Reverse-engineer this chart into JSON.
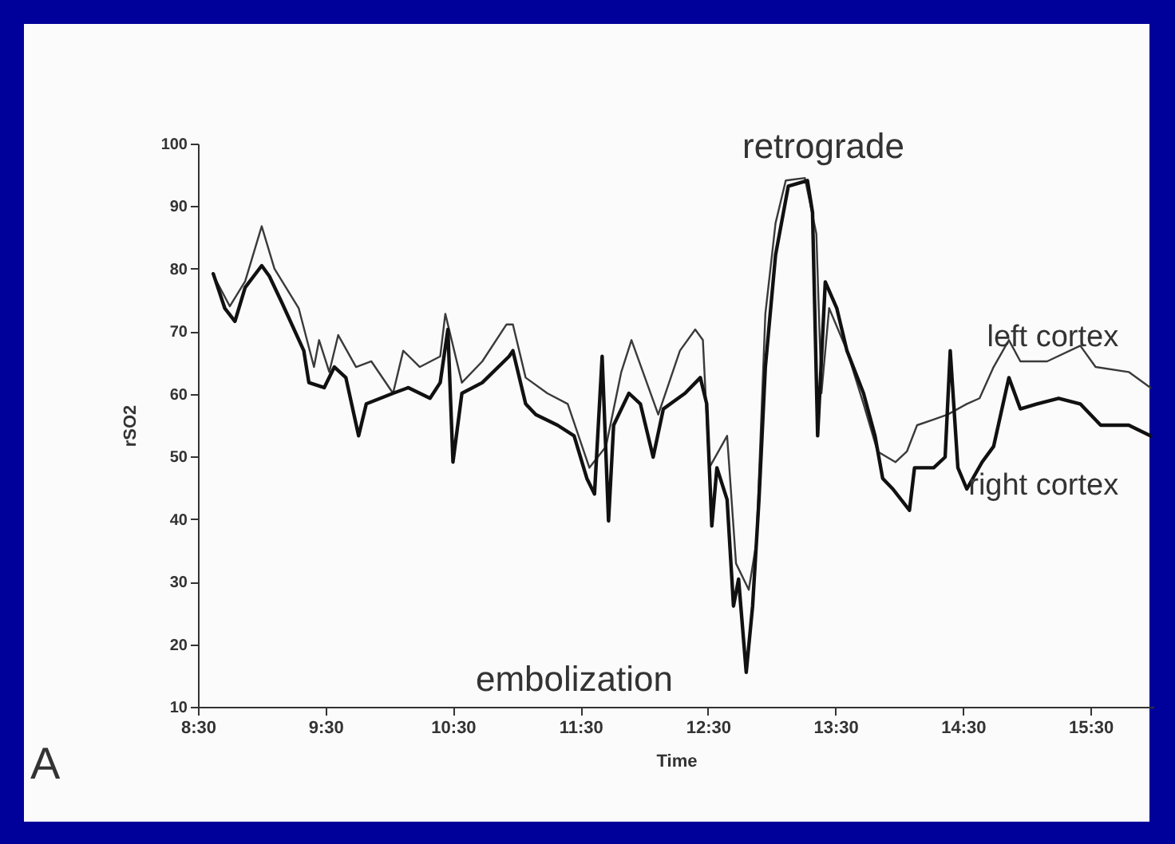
{
  "chart_data": {
    "type": "line",
    "xlabel": "Time",
    "ylabel": "rSO2",
    "xlim": [
      8.5,
      16
    ],
    "xticks": [
      {
        "value": 8.5,
        "label": "8:30"
      },
      {
        "value": 9.5,
        "label": "9:30"
      },
      {
        "value": 10.5,
        "label": "10:30"
      },
      {
        "value": 11.5,
        "label": "11:30"
      },
      {
        "value": 12.5,
        "label": "12:30"
      },
      {
        "value": 13.5,
        "label": "13:30"
      },
      {
        "value": 14.5,
        "label": "14:30"
      },
      {
        "value": 15.5,
        "label": "15:30"
      }
    ],
    "ylim": [
      10,
      100
    ],
    "yticks": [
      10,
      20,
      30,
      40,
      50,
      60,
      70,
      80,
      90,
      100
    ],
    "grid": false,
    "series": [
      {
        "name": "left cortex",
        "color": "#3a3a3a",
        "x": [
          8.62,
          8.75,
          8.87,
          9.0,
          9.1,
          9.29,
          9.41,
          9.45,
          9.53,
          9.6,
          9.74,
          9.86,
          10.03,
          10.11,
          10.24,
          10.4,
          10.44,
          10.57,
          10.73,
          10.92,
          10.97,
          11.07,
          11.24,
          11.4,
          11.57,
          11.7,
          11.82,
          11.9,
          11.99,
          12.11,
          12.28,
          12.4,
          12.46,
          12.51,
          12.65,
          12.72,
          12.82,
          12.88,
          12.95,
          13.03,
          13.11,
          13.26,
          13.35,
          13.39,
          13.45,
          13.59,
          13.72,
          13.83,
          13.97,
          14.06,
          14.14,
          14.27,
          14.38,
          14.53,
          14.63,
          14.74,
          14.86,
          14.95,
          15.16,
          15.42,
          15.54,
          15.8,
          15.97
        ],
        "values": [
          79,
          74,
          78,
          86.8,
          80,
          73.7,
          64.3,
          68.6,
          63.5,
          69.4,
          64.3,
          65.2,
          60.1,
          66.9,
          64.3,
          66,
          72.8,
          61.8,
          65.2,
          71.1,
          71.1,
          62.6,
          60.1,
          58.4,
          48.2,
          51.6,
          63.5,
          68.6,
          63.5,
          56.7,
          66.9,
          70.3,
          68.6,
          48.2,
          53.3,
          32.9,
          28.7,
          36.3,
          72.8,
          87.3,
          94.1,
          94.5,
          85.6,
          60.1,
          73.7,
          66.9,
          58.4,
          50.8,
          49.1,
          50.8,
          55,
          55.9,
          56.7,
          58.4,
          59.3,
          64.3,
          68.6,
          65.2,
          65.2,
          67.7,
          64.3,
          63.5,
          61
        ]
      },
      {
        "name": "right cortex",
        "color": "#111111",
        "x": [
          8.62,
          8.71,
          8.79,
          8.87,
          9.0,
          9.06,
          9.16,
          9.33,
          9.37,
          9.49,
          9.57,
          9.66,
          9.76,
          9.82,
          10.03,
          10.15,
          10.32,
          10.4,
          10.46,
          10.5,
          10.57,
          10.73,
          10.94,
          10.97,
          11.07,
          11.15,
          11.32,
          11.45,
          11.55,
          11.61,
          11.67,
          11.72,
          11.76,
          11.88,
          11.97,
          12.07,
          12.15,
          12.32,
          12.44,
          12.49,
          12.53,
          12.57,
          12.65,
          12.7,
          12.74,
          12.8,
          12.85,
          12.9,
          12.95,
          13.03,
          13.13,
          13.28,
          13.32,
          13.36,
          13.42,
          13.51,
          13.59,
          13.72,
          13.81,
          13.87,
          13.95,
          14.08,
          14.12,
          14.27,
          14.36,
          14.4,
          14.46,
          14.53,
          14.65,
          14.74,
          14.86,
          14.95,
          15.08,
          15.25,
          15.42,
          15.58,
          15.8,
          15.97
        ],
        "values": [
          79.2,
          73.7,
          71.6,
          77,
          80.5,
          78.8,
          74.5,
          66.9,
          61.8,
          61,
          64.3,
          62.6,
          53.3,
          58.4,
          60.1,
          61,
          59.3,
          61.8,
          70.3,
          49.1,
          60.1,
          61.8,
          66,
          66.9,
          58.4,
          56.7,
          55,
          53.3,
          46.5,
          44,
          66,
          39.7,
          55,
          60.1,
          58.4,
          49.9,
          57.6,
          60.1,
          62.6,
          58.4,
          38.9,
          48.2,
          43.1,
          26.1,
          30.4,
          15.5,
          26.1,
          43.1,
          64.3,
          82.2,
          93.2,
          94.1,
          89,
          53.3,
          77.9,
          73.7,
          66.9,
          60.1,
          53.3,
          46.5,
          44.8,
          41.4,
          48.2,
          48.2,
          49.9,
          66.9,
          48.2,
          44.8,
          49.1,
          51.6,
          62.6,
          57.6,
          58.4,
          59.3,
          58.4,
          55,
          55,
          53.3
        ]
      }
    ],
    "annotations": [
      "retrograde",
      "embolization",
      "A"
    ]
  }
}
